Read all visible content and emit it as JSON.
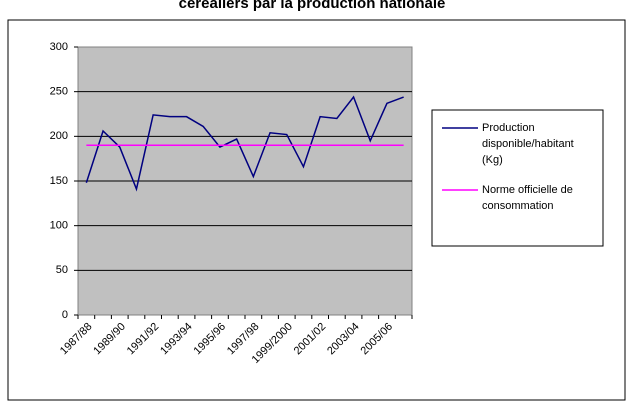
{
  "chart_data": {
    "type": "line",
    "title": "céréaliers par la production nationale",
    "categories": [
      "1987/88",
      null,
      "1989/90",
      null,
      "1991/92",
      null,
      "1993/94",
      null,
      "1995/96",
      null,
      "1997/98",
      null,
      "1999/2000",
      null,
      "2001/02",
      null,
      "2003/04",
      null,
      "2005/06",
      null
    ],
    "series": [
      {
        "name": "Production disponible/habitant (Kg)",
        "color": "#000080",
        "values": [
          148,
          206,
          188,
          141,
          224,
          222,
          222,
          211,
          188,
          197,
          155,
          204,
          202,
          166,
          222,
          220,
          244,
          195,
          237,
          244
        ]
      },
      {
        "name": "Norme officielle de consommation",
        "color": "#ff00ff",
        "values": [
          190,
          190,
          190,
          190,
          190,
          190,
          190,
          190,
          190,
          190,
          190,
          190,
          190,
          190,
          190,
          190,
          190,
          190,
          190,
          190
        ]
      }
    ],
    "ylim": [
      0,
      300
    ],
    "yticks": [
      0,
      50,
      100,
      150,
      200,
      250,
      300
    ],
    "grid": true,
    "legend": "right"
  }
}
